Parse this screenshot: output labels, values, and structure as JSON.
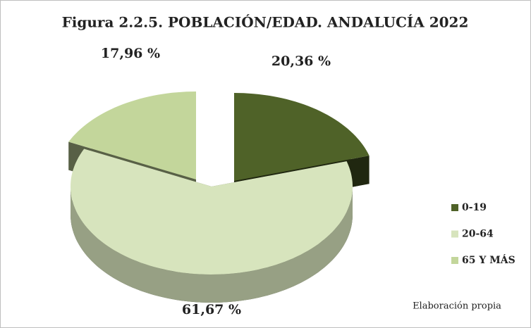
{
  "chart_data": {
    "type": "pie3d",
    "title": "Figura 2.2.5. POBLACIÓN/EDAD. ANDALUCÍA 2022",
    "categories": [
      "0-19",
      "20-64",
      "65 Y MÁS"
    ],
    "values": [
      20.36,
      61.67,
      17.96
    ],
    "value_labels": [
      "20,36 %",
      "61,67 %",
      "17,96 %"
    ],
    "colors": [
      "#4f6228",
      "#d7e4bd",
      "#c3d69b"
    ],
    "legend": "right",
    "note": "Elaboración propia"
  }
}
